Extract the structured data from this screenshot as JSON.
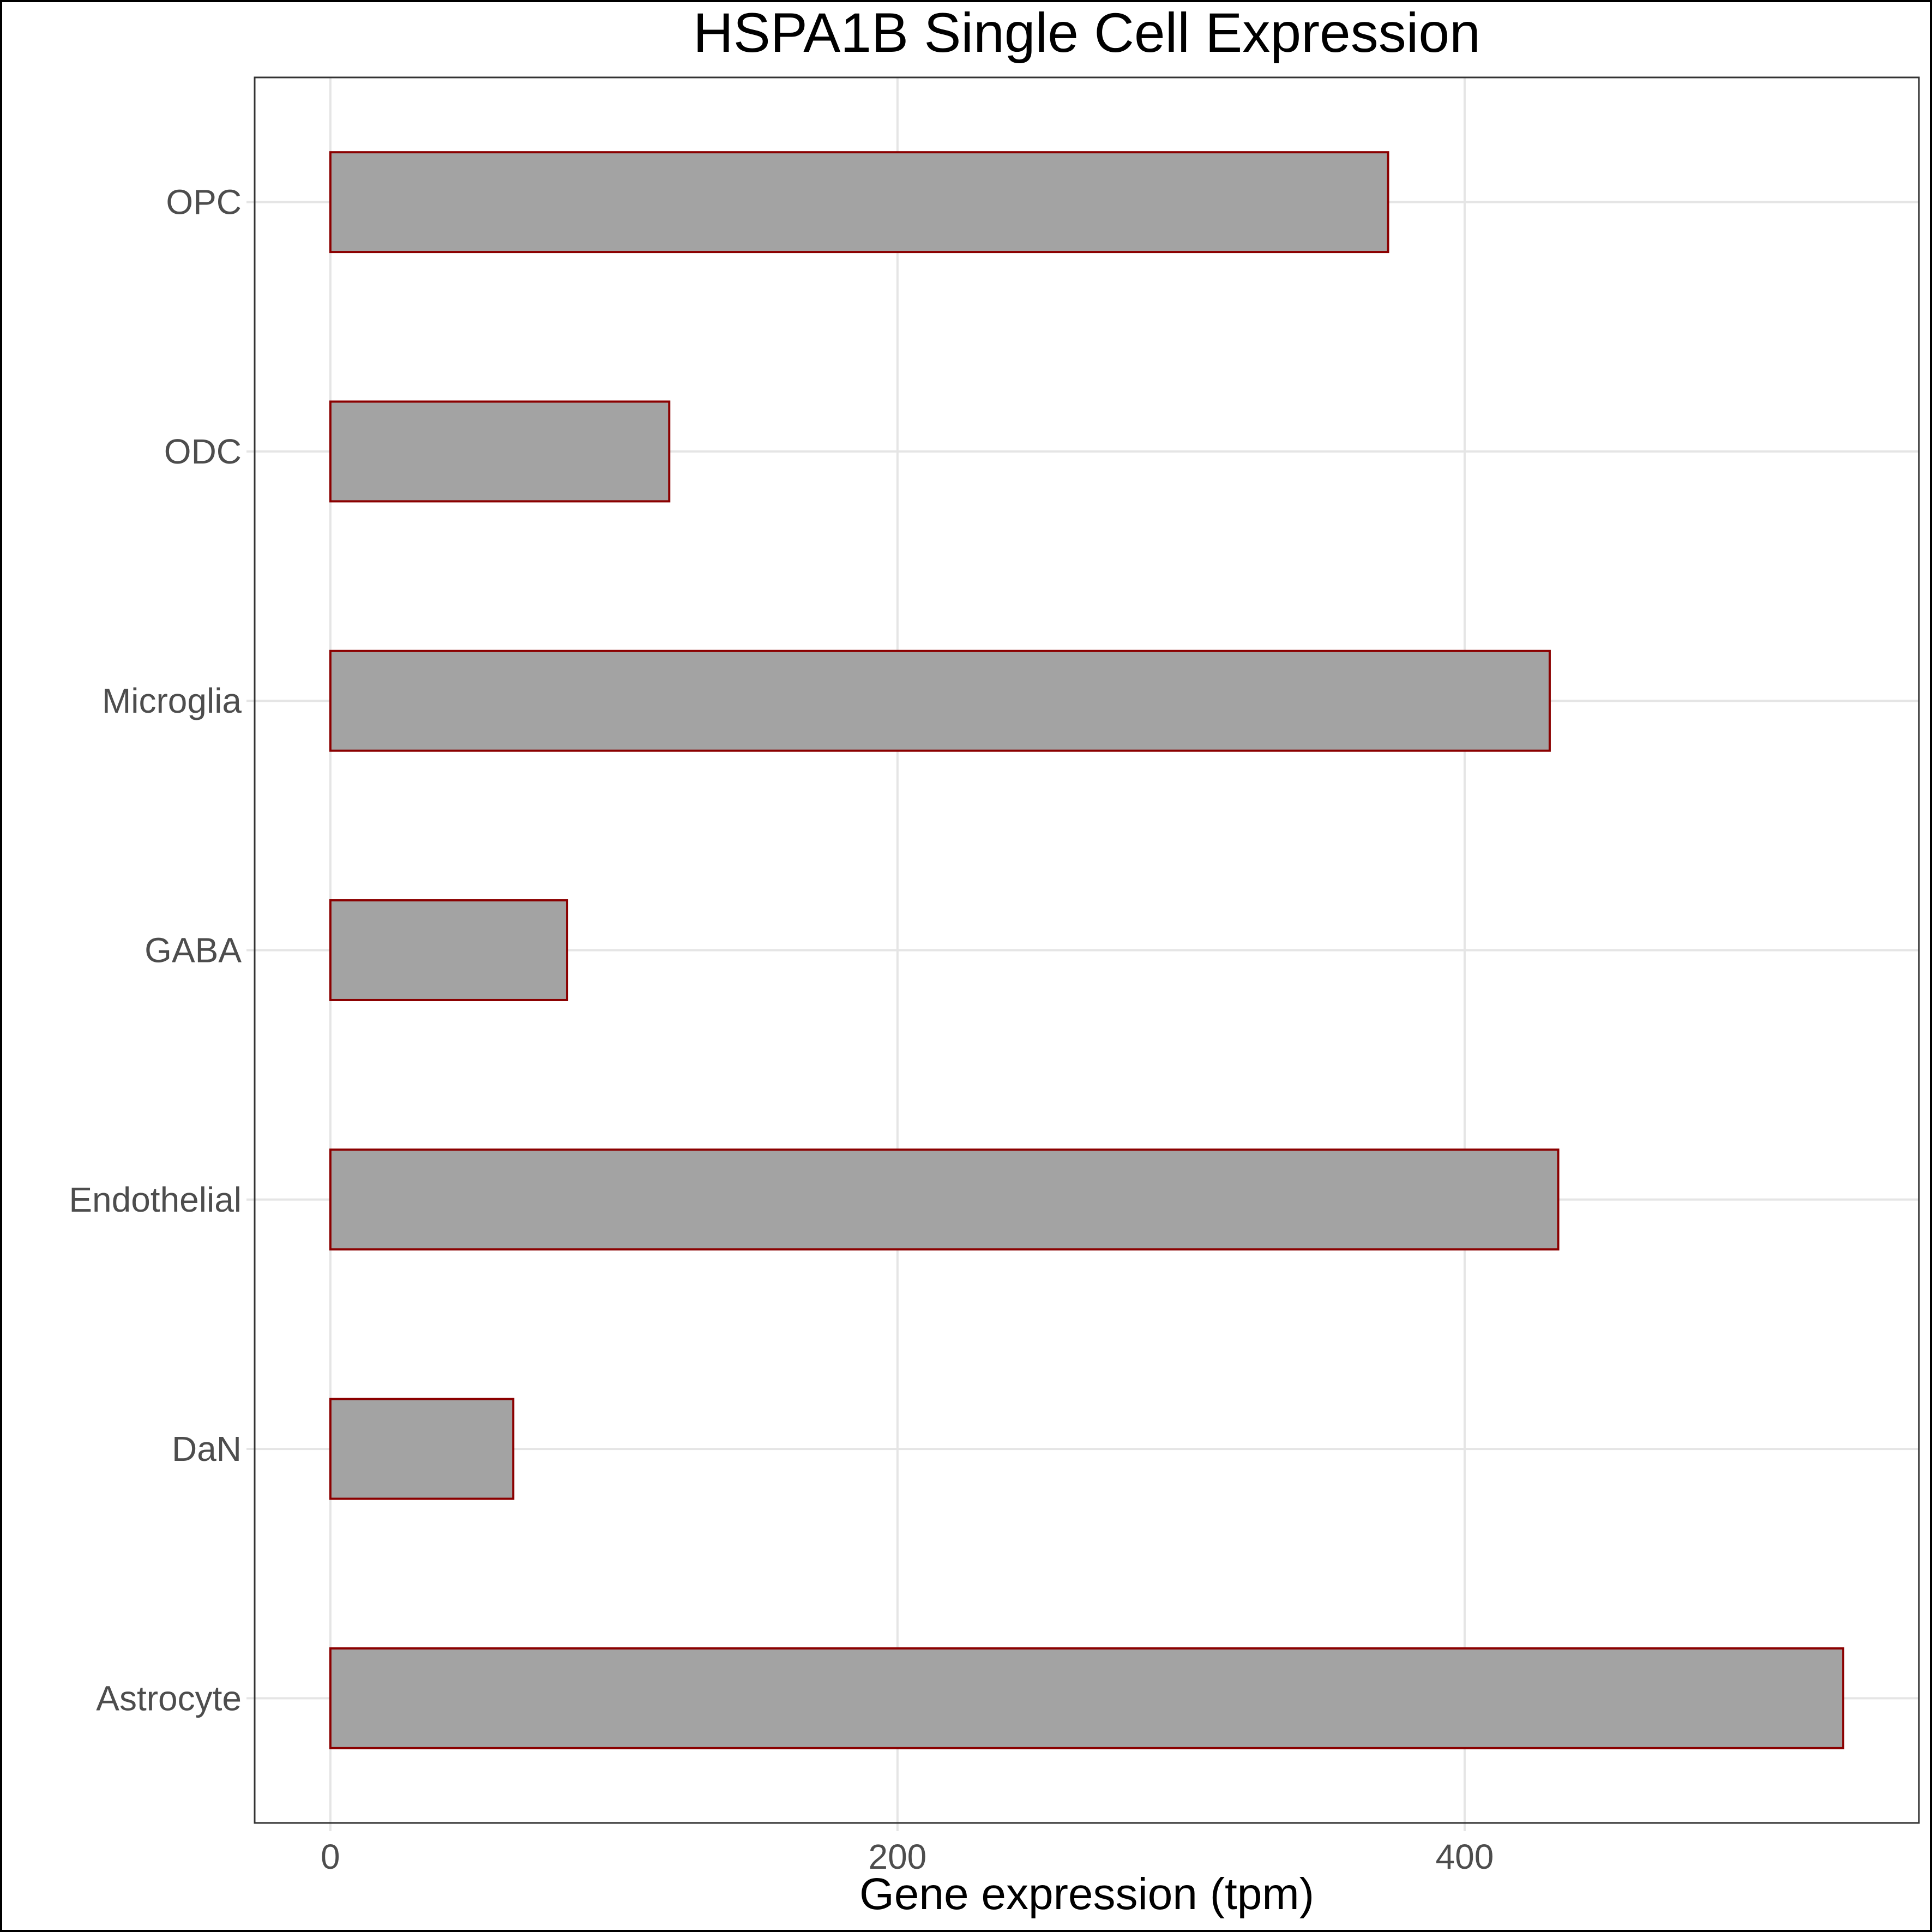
{
  "chart_data": {
    "type": "bar",
    "orientation": "horizontal",
    "title": "HSPA1B Single Cell Expression",
    "xlabel": "Gene expression (tpm)",
    "ylabel": "",
    "categories": [
      "Astrocyte",
      "DaN",
      "Endothelial",
      "GABA",
      "Microglia",
      "ODC",
      "OPC"
    ],
    "values": [
      533.5,
      64.5,
      433,
      83.5,
      430,
      119.5,
      373
    ],
    "xlim": [
      -26.7,
      560.2
    ],
    "xticks": [
      0,
      200,
      400
    ],
    "xtick_labels": [
      "0",
      "200",
      "400"
    ],
    "grid": true,
    "legend": "none",
    "colors": {
      "bar_fill": "#a3a3a3",
      "bar_stroke": "#8b0000",
      "grid": "#e5e5e5",
      "tick_label": "#4d4d4d",
      "title": "#000000"
    }
  }
}
